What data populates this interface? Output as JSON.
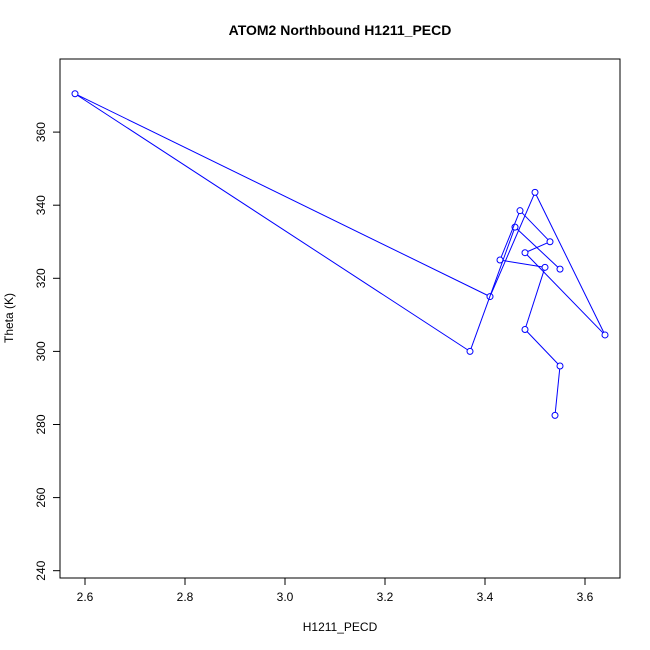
{
  "chart_data": {
    "type": "scatter",
    "title": "ATOM2 Northbound H1211_PECD",
    "xlabel": "H1211_PECD",
    "ylabel": "Theta (K)",
    "xlim": [
      2.55,
      3.67
    ],
    "ylim": [
      238,
      380
    ],
    "xticks": [
      2.6,
      2.8,
      3.0,
      3.2,
      3.4,
      3.6
    ],
    "xtick_labels": [
      "2.6",
      "2.8",
      "3.0",
      "3.2",
      "3.4",
      "3.6"
    ],
    "yticks": [
      240,
      260,
      280,
      300,
      320,
      340,
      360
    ],
    "ytick_labels": [
      "240",
      "260",
      "280",
      "300",
      "320",
      "340",
      "360"
    ],
    "grid": false,
    "connected": true,
    "color": "#0000ff",
    "x": [
      3.54,
      3.55,
      3.48,
      3.52,
      3.43,
      3.47,
      3.53,
      3.48,
      3.64,
      3.5,
      3.41,
      2.58,
      3.37,
      3.46,
      3.55
    ],
    "y": [
      282.5,
      296,
      306,
      323,
      325,
      338.5,
      330,
      327,
      304.5,
      343.5,
      315,
      370.5,
      300,
      334,
      322.5
    ]
  }
}
